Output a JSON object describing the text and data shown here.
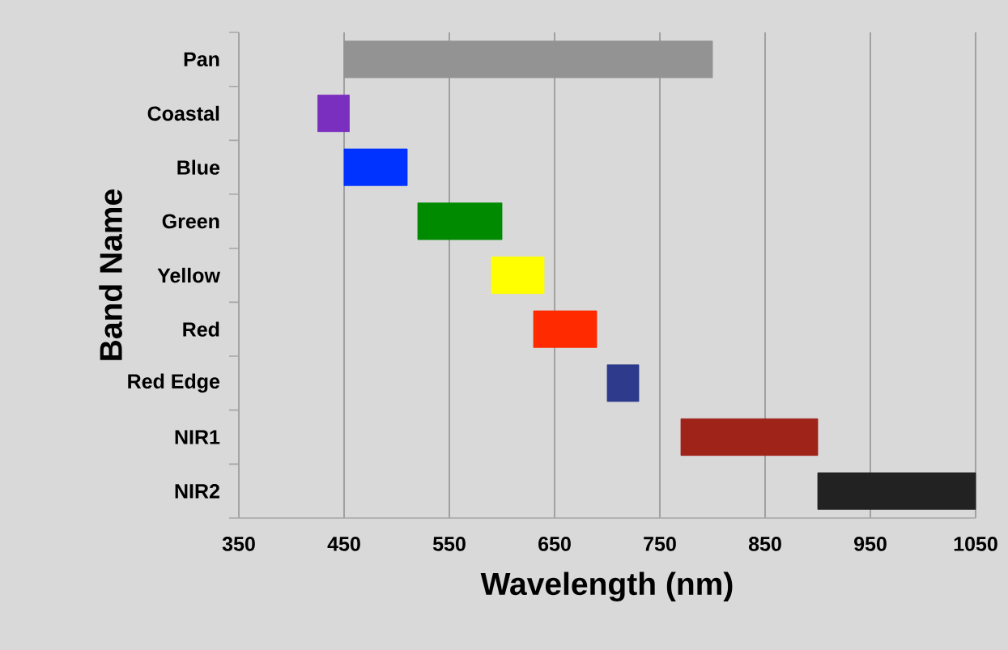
{
  "chart_data": {
    "type": "bar",
    "orientation": "horizontal",
    "xlabel": "Wavelength (nm)",
    "ylabel": "Band Name",
    "categories": [
      "Pan",
      "Coastal",
      "Blue",
      "Green",
      "Yellow",
      "Red",
      "Red Edge",
      "NIR1",
      "NIR2"
    ],
    "base": [
      450,
      425,
      450,
      520,
      590,
      630,
      700,
      770,
      900
    ],
    "values": [
      350,
      30,
      60,
      80,
      50,
      60,
      30,
      130,
      150
    ],
    "colors": [
      "#939393",
      "#7b2fbe",
      "#0033ff",
      "#008a00",
      "#ffff00",
      "#ff2a00",
      "#2e3a8c",
      "#a0231a",
      "#222222"
    ],
    "xlim": [
      350,
      1050
    ],
    "xticks": [
      350,
      450,
      550,
      650,
      750,
      850,
      950,
      1050
    ],
    "grid": "x"
  }
}
